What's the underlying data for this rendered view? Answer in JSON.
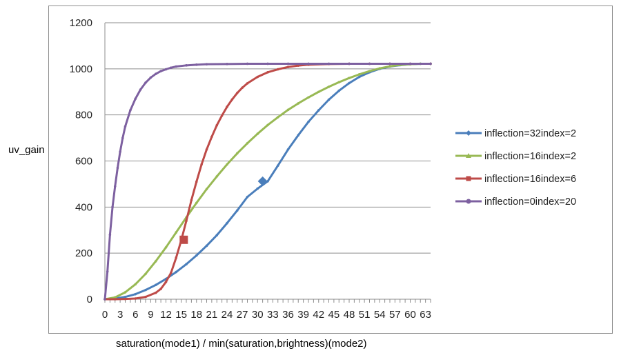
{
  "chart_data": {
    "type": "line",
    "title": "",
    "xlabel": "saturation(mode1) /  min(saturation,brightness)(mode2)",
    "ylabel": "uv_gain",
    "xlim": [
      0,
      64
    ],
    "ylim": [
      0,
      1200
    ],
    "yticks": [
      0,
      200,
      400,
      600,
      800,
      1000,
      1200
    ],
    "xticks": [
      0,
      3,
      6,
      9,
      12,
      15,
      18,
      21,
      24,
      27,
      30,
      33,
      36,
      39,
      42,
      45,
      48,
      51,
      54,
      57,
      60,
      63
    ],
    "grid": "horizontal",
    "legend_position": "right",
    "series": [
      {
        "name": "inflection=32index=2",
        "color": "#4a7ebb",
        "marker": "diamond",
        "x": [
          0,
          2,
          4,
          6,
          8,
          10,
          12,
          14,
          16,
          18,
          20,
          22,
          24,
          26,
          28,
          30,
          32,
          34,
          36,
          38,
          40,
          42,
          44,
          46,
          48,
          50,
          52,
          54,
          56,
          58,
          60,
          62,
          64
        ],
        "y": [
          0,
          3,
          10,
          22,
          40,
          62,
          88,
          118,
          152,
          190,
          232,
          278,
          330,
          385,
          444,
          480,
          512,
          580,
          650,
          712,
          770,
          820,
          866,
          905,
          938,
          965,
          985,
          1000,
          1010,
          1016,
          1020,
          1022,
          1022
        ]
      },
      {
        "name": "inflection=16index=2",
        "color": "#98b954",
        "marker": "triangle",
        "x": [
          0,
          2,
          4,
          6,
          8,
          10,
          12,
          14,
          16,
          18,
          20,
          22,
          24,
          26,
          28,
          30,
          32,
          34,
          36,
          38,
          40,
          42,
          44,
          46,
          48,
          50,
          52,
          54,
          56,
          58,
          60,
          62,
          64
        ],
        "y": [
          0,
          8,
          30,
          65,
          110,
          165,
          225,
          290,
          355,
          418,
          478,
          533,
          585,
          633,
          677,
          718,
          756,
          790,
          822,
          850,
          876,
          900,
          922,
          942,
          960,
          976,
          990,
          1002,
          1011,
          1017,
          1020,
          1022,
          1022
        ]
      },
      {
        "name": "inflection=16index=6",
        "color": "#be4b48",
        "marker": "square",
        "x": [
          0,
          2,
          4,
          6,
          8,
          10,
          11,
          12,
          13,
          14,
          15,
          16,
          17,
          18,
          19,
          20,
          21,
          22,
          23,
          24,
          25,
          26,
          27,
          28,
          30,
          32,
          34,
          36,
          38,
          40,
          44,
          48,
          52,
          56,
          60,
          64
        ],
        "y": [
          0,
          0,
          1,
          3,
          10,
          28,
          45,
          75,
          115,
          180,
          255,
          340,
          430,
          510,
          585,
          650,
          705,
          755,
          797,
          835,
          867,
          895,
          918,
          937,
          965,
          985,
          998,
          1008,
          1014,
          1018,
          1021,
          1022,
          1022,
          1022,
          1022,
          1022
        ]
      },
      {
        "name": "inflection=0index=20",
        "color": "#7d60a0",
        "marker": "circle",
        "x": [
          0,
          0.5,
          1,
          1.5,
          2,
          2.5,
          3,
          3.5,
          4,
          5,
          6,
          7,
          8,
          9,
          10,
          11,
          12,
          13,
          14,
          16,
          18,
          20,
          24,
          28,
          32,
          36,
          40,
          44,
          48,
          52,
          56,
          60,
          64
        ],
        "y": [
          0,
          120,
          280,
          400,
          490,
          570,
          640,
          700,
          750,
          820,
          870,
          910,
          940,
          962,
          978,
          990,
          998,
          1005,
          1010,
          1015,
          1018,
          1020,
          1021,
          1022,
          1022,
          1022,
          1022,
          1022,
          1022,
          1022,
          1022,
          1022,
          1022
        ]
      }
    ],
    "highlighted_points": [
      {
        "series": 0,
        "x": 31,
        "y": 512
      },
      {
        "series": 2,
        "x": 15.5,
        "y": 258
      }
    ]
  }
}
